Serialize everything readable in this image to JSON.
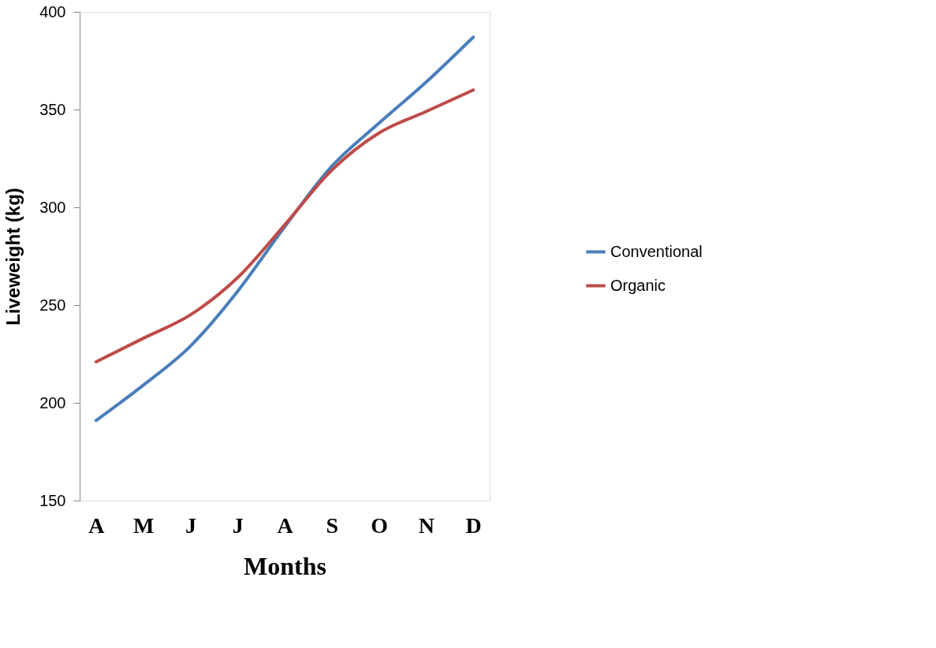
{
  "chart_data": {
    "type": "line",
    "xlabel": "Months",
    "ylabel": "Liveweight (kg)",
    "categories": [
      "A",
      "M",
      "J",
      "J",
      "A",
      "S",
      "O",
      "N",
      "D"
    ],
    "series": [
      {
        "name": "Conventional",
        "color": "#4a7ebb",
        "values": [
          191,
          209,
          229,
          257,
          290,
          321,
          343,
          364,
          387
        ]
      },
      {
        "name": "Organic",
        "color": "#be4b48",
        "values": [
          221,
          233,
          245,
          264,
          291,
          319,
          338,
          349,
          360
        ]
      }
    ],
    "ylim": [
      150,
      400
    ],
    "yticks": [
      150,
      200,
      250,
      300,
      350,
      400
    ],
    "grid": false,
    "legend": "right",
    "marker": "none",
    "line_style": "solid"
  }
}
